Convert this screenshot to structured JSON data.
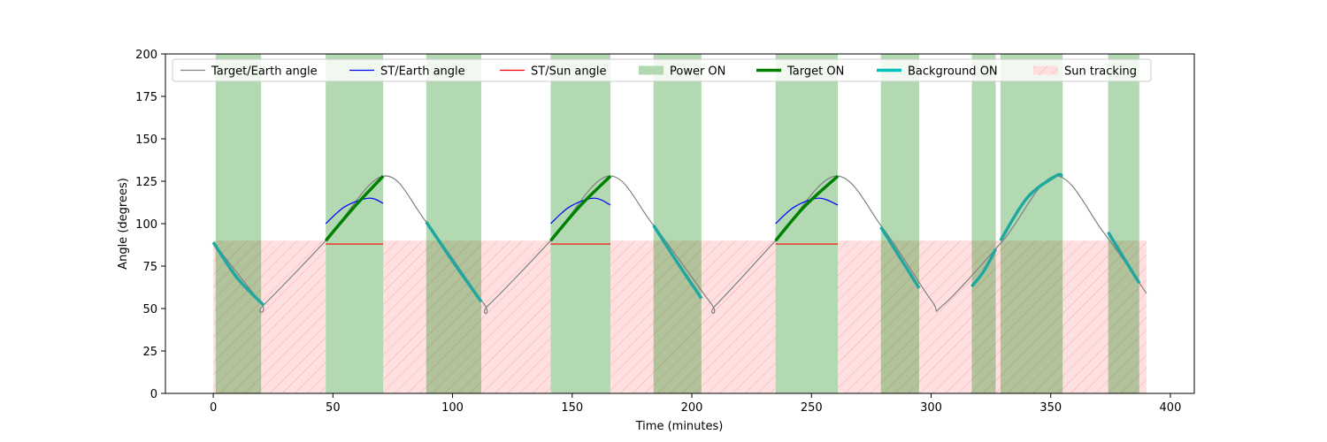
{
  "chart_data": {
    "type": "line",
    "xlabel": "Time (minutes)",
    "ylabel": "Angle (degrees)",
    "xlim": [
      -20,
      410
    ],
    "ylim": [
      0,
      200
    ],
    "xticks": [
      0,
      50,
      100,
      150,
      200,
      250,
      300,
      350,
      400
    ],
    "yticks": [
      0,
      25,
      50,
      75,
      100,
      125,
      150,
      175,
      200
    ],
    "grid": false,
    "legend_position": "top",
    "legend": [
      {
        "label": "Target/Earth angle",
        "kind": "line",
        "color": "#808080"
      },
      {
        "label": "ST/Earth angle",
        "kind": "line",
        "color": "#0000ff"
      },
      {
        "label": "ST/Sun angle",
        "kind": "line",
        "color": "#ff0000"
      },
      {
        "label": "Power ON",
        "kind": "patch",
        "color": "#b2d8b2"
      },
      {
        "label": "Target ON",
        "kind": "thickline",
        "color": "#008000"
      },
      {
        "label": "Background ON",
        "kind": "thickline",
        "color": "#00bfbf"
      },
      {
        "label": "Sun tracking",
        "kind": "hatch",
        "color": "#ffdede"
      }
    ],
    "target_earth_angle": {
      "color": "#808080",
      "x": [
        0,
        20,
        21,
        47,
        71,
        89,
        113,
        115,
        141,
        165,
        184,
        208,
        210,
        235,
        260,
        280,
        300,
        305,
        330,
        352,
        372,
        390
      ],
      "y": [
        89,
        53,
        52,
        90,
        128,
        101,
        53,
        52,
        90,
        128,
        99,
        53,
        52,
        90,
        128,
        97,
        55,
        52,
        90,
        128,
        95,
        59
      ]
    },
    "power_on": {
      "color": "#b2d8b2",
      "intervals": [
        [
          1,
          20
        ],
        [
          47,
          71
        ],
        [
          89,
          112
        ],
        [
          141,
          166
        ],
        [
          184,
          204
        ],
        [
          235,
          261
        ],
        [
          279,
          295
        ],
        [
          317,
          327
        ],
        [
          329,
          355
        ],
        [
          374,
          387
        ]
      ]
    },
    "sun_tracking": {
      "color": "#ffdede",
      "y_range": [
        0,
        90
      ],
      "intervals": [
        [
          0,
          47
        ],
        [
          71,
          141
        ],
        [
          166,
          235
        ],
        [
          261,
          390
        ]
      ]
    },
    "target_on": {
      "color": "#008000",
      "segments": [
        {
          "x": [
            47,
            59,
            71
          ],
          "y": [
            90,
            110,
            128
          ]
        },
        {
          "x": [
            141,
            153,
            166
          ],
          "y": [
            90,
            110,
            128
          ]
        },
        {
          "x": [
            235,
            247,
            261
          ],
          "y": [
            90,
            110,
            128
          ]
        }
      ]
    },
    "background_on": {
      "color": "#20a8a0",
      "segments": [
        {
          "x": [
            0,
            10,
            21
          ],
          "y": [
            89,
            68,
            52
          ]
        },
        {
          "x": [
            89,
            100,
            112
          ],
          "y": [
            101,
            78,
            54
          ]
        },
        {
          "x": [
            184,
            194,
            204
          ],
          "y": [
            99,
            77,
            56
          ]
        },
        {
          "x": [
            279,
            287,
            295
          ],
          "y": [
            98,
            80,
            62
          ]
        },
        {
          "x": [
            317,
            322,
            327
          ],
          "y": [
            63,
            72,
            85
          ]
        },
        {
          "x": [
            329,
            340,
            352,
            355
          ],
          "y": [
            90,
            115,
            128,
            128
          ]
        },
        {
          "x": [
            374,
            380,
            387
          ],
          "y": [
            95,
            81,
            65
          ]
        }
      ]
    },
    "st_earth_angle": {
      "color": "#0000ff",
      "segments": [
        {
          "x": [
            47,
            55,
            65,
            71
          ],
          "y": [
            100,
            110,
            115,
            112
          ]
        },
        {
          "x": [
            141,
            149,
            159,
            166
          ],
          "y": [
            100,
            110,
            115,
            111
          ]
        },
        {
          "x": [
            235,
            243,
            253,
            261
          ],
          "y": [
            100,
            110,
            115,
            111
          ]
        }
      ]
    },
    "st_sun_angle": {
      "color": "#ff0000",
      "segments": [
        {
          "x": [
            47,
            71
          ],
          "y": [
            88,
            88
          ]
        },
        {
          "x": [
            141,
            166
          ],
          "y": [
            88,
            88
          ]
        },
        {
          "x": [
            235,
            261
          ],
          "y": [
            88,
            88
          ]
        }
      ]
    }
  }
}
